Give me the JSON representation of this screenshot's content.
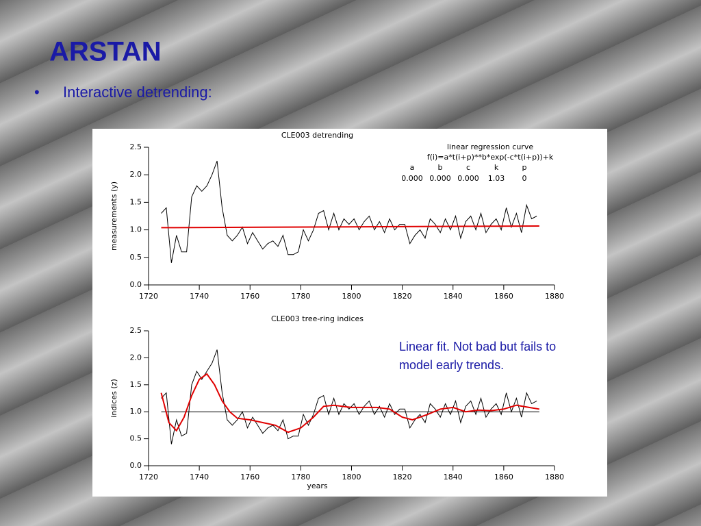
{
  "title": "ARSTAN",
  "bullet": "Interactive detrending:",
  "note": [
    "Linear fit. Not bad but fails to",
    "model early trends."
  ],
  "chart_data": [
    {
      "type": "line",
      "title": "CLE003 detrending",
      "ylabel": "measurements (y)",
      "annotations": [
        "linear regression curve",
        "f(i)=a*t(i+p)**b*exp(-c*t(i+p))+k"
      ],
      "params": [
        "a",
        "b",
        "c",
        "k",
        "p"
      ],
      "param_values": [
        "0.000",
        "0.000",
        "0.000",
        "1.03",
        "0"
      ],
      "xlim": [
        1720,
        1880
      ],
      "xticks": [
        1720,
        1740,
        1760,
        1780,
        1800,
        1820,
        1840,
        1860,
        1880
      ],
      "ylim": [
        0,
        2.5
      ],
      "yticks": [
        {
          "value": 0,
          "label": "0.0"
        },
        0.5,
        {
          "value": 1,
          "label": "1.0"
        },
        1.5,
        {
          "value": 2,
          "label": "2.0"
        },
        2.5
      ],
      "series": [
        {
          "color": "#000000",
          "x": [
            1725,
            1727,
            1729,
            1731,
            1733,
            1735,
            1737,
            1739,
            1741,
            1743,
            1745,
            1747,
            1749,
            1751,
            1753,
            1755,
            1757,
            1759,
            1761,
            1763,
            1765,
            1767,
            1769,
            1771,
            1773,
            1775,
            1777,
            1779,
            1781,
            1783,
            1785,
            1787,
            1789,
            1791,
            1793,
            1795,
            1797,
            1799,
            1801,
            1803,
            1805,
            1807,
            1809,
            1811,
            1813,
            1815,
            1817,
            1819,
            1821,
            1823,
            1825,
            1827,
            1829,
            1831,
            1833,
            1835,
            1837,
            1839,
            1841,
            1843,
            1845,
            1847,
            1849,
            1851,
            1853,
            1855,
            1857,
            1859,
            1861,
            1863,
            1865,
            1867,
            1869,
            1871,
            1873
          ],
          "values": [
            1.3,
            1.4,
            0.4,
            0.9,
            0.6,
            0.6,
            1.6,
            1.8,
            1.7,
            1.8,
            2.0,
            2.25,
            1.4,
            0.9,
            0.8,
            0.9,
            1.05,
            0.75,
            0.95,
            0.8,
            0.65,
            0.75,
            0.8,
            0.7,
            0.9,
            0.55,
            0.55,
            0.6,
            1.0,
            0.8,
            1.0,
            1.3,
            1.35,
            1.0,
            1.3,
            1.0,
            1.2,
            1.1,
            1.2,
            1.0,
            1.15,
            1.25,
            1.0,
            1.15,
            0.95,
            1.2,
            1.0,
            1.1,
            1.1,
            0.75,
            0.9,
            1.0,
            0.85,
            1.2,
            1.1,
            0.95,
            1.2,
            1.0,
            1.25,
            0.85,
            1.15,
            1.25,
            1.0,
            1.3,
            0.95,
            1.1,
            1.2,
            1.0,
            1.4,
            1.05,
            1.3,
            0.95,
            1.45,
            1.2,
            1.25
          ]
        },
        {
          "color": "#e00000",
          "x": [
            1725,
            1874
          ],
          "values": [
            1.04,
            1.07
          ]
        }
      ]
    },
    {
      "type": "line",
      "title": "CLE003 tree-ring indices",
      "ylabel": "indices (z)",
      "xlabel": "years",
      "xlim": [
        1720,
        1880
      ],
      "xticks": [
        1720,
        1740,
        1760,
        1780,
        1800,
        1820,
        1840,
        1860,
        1880
      ],
      "ylim": [
        0,
        2.5
      ],
      "yticks": [
        {
          "value": 0,
          "label": "0.0"
        },
        0.5,
        {
          "value": 1,
          "label": "1.0"
        },
        1.5,
        {
          "value": 2,
          "label": "2.0"
        },
        2.5
      ],
      "series": [
        {
          "color": "#000000",
          "x": [
            1725,
            1874
          ],
          "values": [
            1,
            1
          ]
        },
        {
          "color": "#000000",
          "x": [
            1725,
            1727,
            1729,
            1731,
            1733,
            1735,
            1737,
            1739,
            1741,
            1743,
            1745,
            1747,
            1749,
            1751,
            1753,
            1755,
            1757,
            1759,
            1761,
            1763,
            1765,
            1767,
            1769,
            1771,
            1773,
            1775,
            1777,
            1779,
            1781,
            1783,
            1785,
            1787,
            1789,
            1791,
            1793,
            1795,
            1797,
            1799,
            1801,
            1803,
            1805,
            1807,
            1809,
            1811,
            1813,
            1815,
            1817,
            1819,
            1821,
            1823,
            1825,
            1827,
            1829,
            1831,
            1833,
            1835,
            1837,
            1839,
            1841,
            1843,
            1845,
            1847,
            1849,
            1851,
            1853,
            1855,
            1857,
            1859,
            1861,
            1863,
            1865,
            1867,
            1869,
            1871,
            1873
          ],
          "values": [
            1.25,
            1.35,
            0.4,
            0.85,
            0.55,
            0.6,
            1.5,
            1.75,
            1.6,
            1.75,
            1.9,
            2.15,
            1.35,
            0.85,
            0.75,
            0.85,
            1.0,
            0.7,
            0.9,
            0.75,
            0.6,
            0.7,
            0.75,
            0.65,
            0.85,
            0.5,
            0.55,
            0.55,
            0.95,
            0.75,
            0.95,
            1.25,
            1.3,
            0.95,
            1.25,
            0.95,
            1.15,
            1.05,
            1.15,
            0.95,
            1.1,
            1.2,
            0.95,
            1.1,
            0.9,
            1.15,
            0.95,
            1.05,
            1.05,
            0.7,
            0.85,
            0.95,
            0.8,
            1.15,
            1.05,
            0.9,
            1.15,
            0.95,
            1.2,
            0.8,
            1.1,
            1.2,
            0.95,
            1.25,
            0.9,
            1.05,
            1.15,
            0.95,
            1.35,
            1.0,
            1.25,
            0.9,
            1.35,
            1.15,
            1.2
          ]
        },
        {
          "color": "#e00000",
          "x": [
            1725,
            1728,
            1731,
            1734,
            1737,
            1740,
            1743,
            1746,
            1749,
            1752,
            1755,
            1760,
            1765,
            1770,
            1775,
            1780,
            1785,
            1789,
            1793,
            1800,
            1810,
            1815,
            1820,
            1824,
            1830,
            1835,
            1840,
            1845,
            1850,
            1855,
            1860,
            1865,
            1870,
            1874
          ],
          "values": [
            1.35,
            0.8,
            0.65,
            0.9,
            1.3,
            1.6,
            1.7,
            1.5,
            1.2,
            1.0,
            0.88,
            0.85,
            0.8,
            0.75,
            0.62,
            0.7,
            0.9,
            1.1,
            1.12,
            1.08,
            1.08,
            1.05,
            0.9,
            0.85,
            0.95,
            1.05,
            1.08,
            1.0,
            1.03,
            1.02,
            1.05,
            1.12,
            1.08,
            1.05
          ]
        }
      ]
    }
  ]
}
